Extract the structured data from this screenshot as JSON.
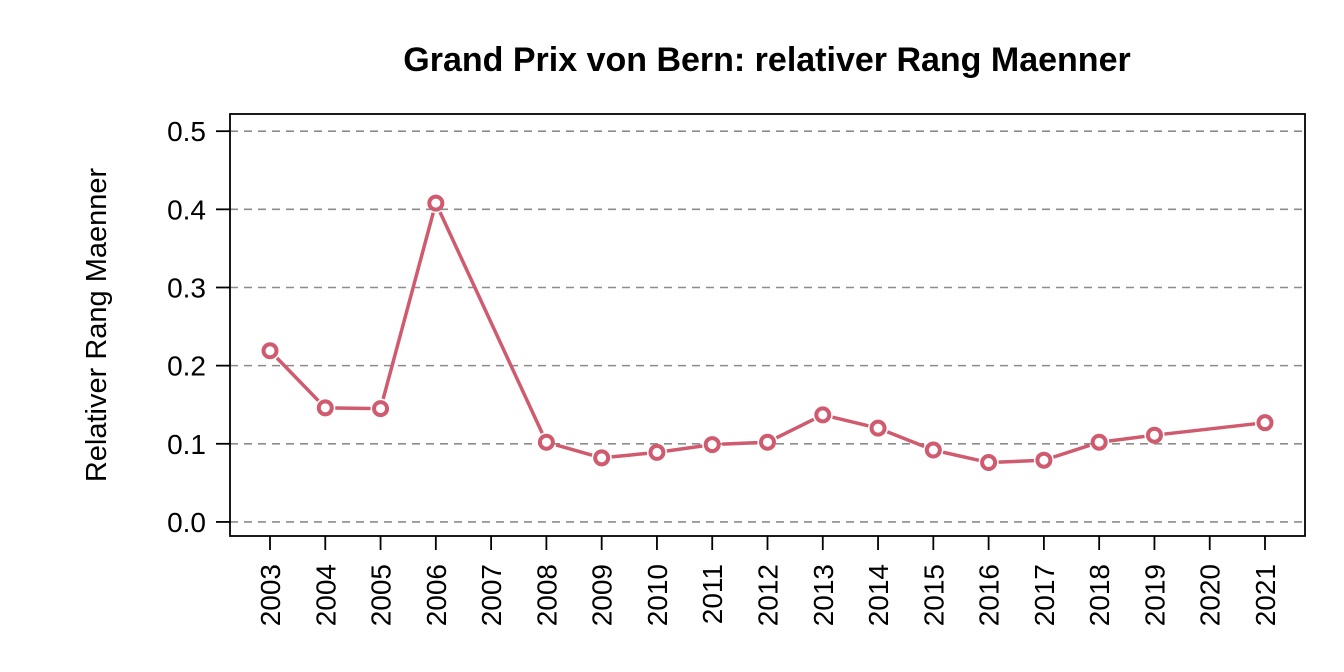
{
  "chart_data": {
    "type": "line",
    "title": "Grand Prix von Bern: relativer Rang Maenner",
    "xlabel": "",
    "ylabel": "Relativer Rang Maenner",
    "categories": [
      "2003",
      "2004",
      "2005",
      "2006",
      "2007",
      "2008",
      "2009",
      "2010",
      "2011",
      "2012",
      "2013",
      "2014",
      "2015",
      "2016",
      "2017",
      "2018",
      "2019",
      "2020",
      "2021"
    ],
    "yticks": [
      "0.0",
      "0.1",
      "0.2",
      "0.3",
      "0.4",
      "0.5"
    ],
    "ylim": [
      -0.018,
      0.522
    ],
    "grid": true,
    "series": [
      {
        "color": "#d05a6e",
        "values": [
          0.219,
          0.146,
          0.145,
          0.408,
          null,
          0.102,
          0.082,
          0.089,
          0.099,
          0.102,
          0.137,
          0.12,
          0.092,
          0.076,
          0.079,
          0.102,
          0.111,
          null,
          0.127
        ]
      }
    ]
  }
}
